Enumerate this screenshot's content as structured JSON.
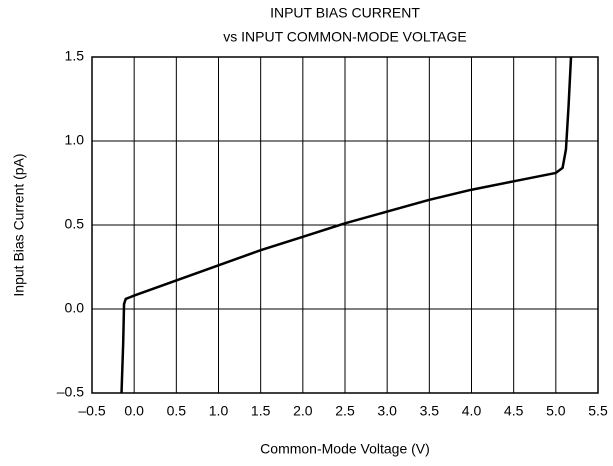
{
  "chart_data": {
    "type": "line",
    "title": "INPUT BIAS CURRENT",
    "subtitle": "vs INPUT COMMON-MODE VOLTAGE",
    "x_label": "Common-Mode Voltage (V)",
    "y_label": "Input Bias Current (pA)",
    "series": [
      {
        "name": "Input Bias Current",
        "color": "#000000",
        "x": [
          -0.15,
          -0.13,
          -0.12,
          -0.1,
          0,
          0.5,
          1,
          1.5,
          2,
          2.5,
          3,
          3.5,
          4,
          4.5,
          5,
          5.08,
          5.12,
          5.15,
          5.18
        ],
        "values": [
          -0.5,
          -0.2,
          0.03,
          0.06,
          0.08,
          0.17,
          0.26,
          0.35,
          0.43,
          0.51,
          0.58,
          0.65,
          0.71,
          0.76,
          0.81,
          0.84,
          0.95,
          1.2,
          1.5
        ]
      }
    ],
    "xlim": [
      -0.5,
      5.5
    ],
    "ylim": [
      -0.5,
      1.5
    ],
    "xticks": [
      {
        "value": -0.5,
        "label": "–0.5"
      },
      {
        "value": 0,
        "label": "0.0"
      },
      0.5,
      {
        "value": 1,
        "label": "1.0"
      },
      1.5,
      {
        "value": 2,
        "label": "2.0"
      },
      2.5,
      {
        "value": 3,
        "label": "3.0"
      },
      3.5,
      {
        "value": 4,
        "label": "4.0"
      },
      4.5,
      {
        "value": 5,
        "label": "5.0"
      },
      5.5
    ],
    "yticks": [
      {
        "value": -0.5,
        "label": "–0.5"
      },
      {
        "value": 0,
        "label": "0.0"
      },
      0.5,
      {
        "value": 1,
        "label": "1.0"
      },
      1.5
    ],
    "grid": true
  }
}
